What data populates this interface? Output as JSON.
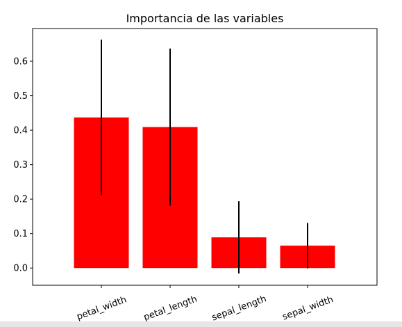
{
  "chart_data": {
    "type": "bar",
    "title": "Importancia de las variables",
    "xlabel": "",
    "ylabel": "",
    "categories": [
      "petal_width",
      "petal_length",
      "sepal_length",
      "sepal_width"
    ],
    "values": [
      0.437,
      0.409,
      0.089,
      0.065
    ],
    "error": [
      0.226,
      0.228,
      0.105,
      0.066
    ],
    "ylim": [
      -0.05,
      0.695
    ],
    "yticks": [
      0.0,
      0.1,
      0.2,
      0.3,
      0.4,
      0.5,
      0.6
    ],
    "ytick_labels": [
      "0.0",
      "0.1",
      "0.2",
      "0.3",
      "0.4",
      "0.5",
      "0.6"
    ],
    "bar_color": "#ff0000",
    "error_color": "#000000",
    "xtick_rotation": 20,
    "grid": false,
    "legend": "none"
  }
}
